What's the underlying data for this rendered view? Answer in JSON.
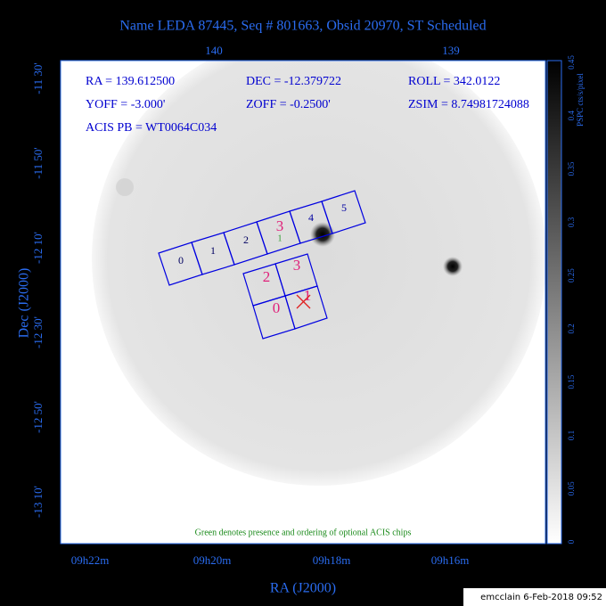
{
  "header": {
    "title": "Name LEDA 87445, Seq # 801663, Obsid 20970, ST Scheduled"
  },
  "axes": {
    "top_ticks": [
      "140",
      "139"
    ],
    "left_ticks": [
      "-11 30'",
      "-11 50'",
      "-12 10'",
      "-12 30'",
      "-12 50'",
      "-13 10'"
    ],
    "bottom_ticks": [
      "09h22m",
      "09h20m",
      "09h18m",
      "09h16m"
    ],
    "x_label": "RA (J2000)",
    "y_label": "Dec (J2000)"
  },
  "info": {
    "rows": [
      [
        "RA = 139.612500",
        "DEC = -12.379722",
        "ROLL = 342.0122"
      ],
      [
        "YOFF = -3.000'",
        "ZOFF = -0.2500'",
        "ZSIM = 8.74981724088"
      ],
      [
        "ACIS PB = WT0064C034"
      ]
    ]
  },
  "acis_s": {
    "labels": [
      "0",
      "1",
      "2",
      "3",
      "4",
      "5"
    ],
    "optional": "1"
  },
  "acis_i": {
    "labels": [
      "2",
      "3",
      "0",
      "1"
    ]
  },
  "note": "Green denotes presence and ordering of optional ACIS chips",
  "colorbar": {
    "label": "PSPC cts/s/pixel",
    "ticks": [
      "0",
      "0.05",
      "0.1",
      "0.15",
      "0.2",
      "0.25",
      "0.3",
      "0.35",
      "0.4",
      "0.45"
    ]
  },
  "footer": "emcclain  6-Feb-2018 09:52"
}
